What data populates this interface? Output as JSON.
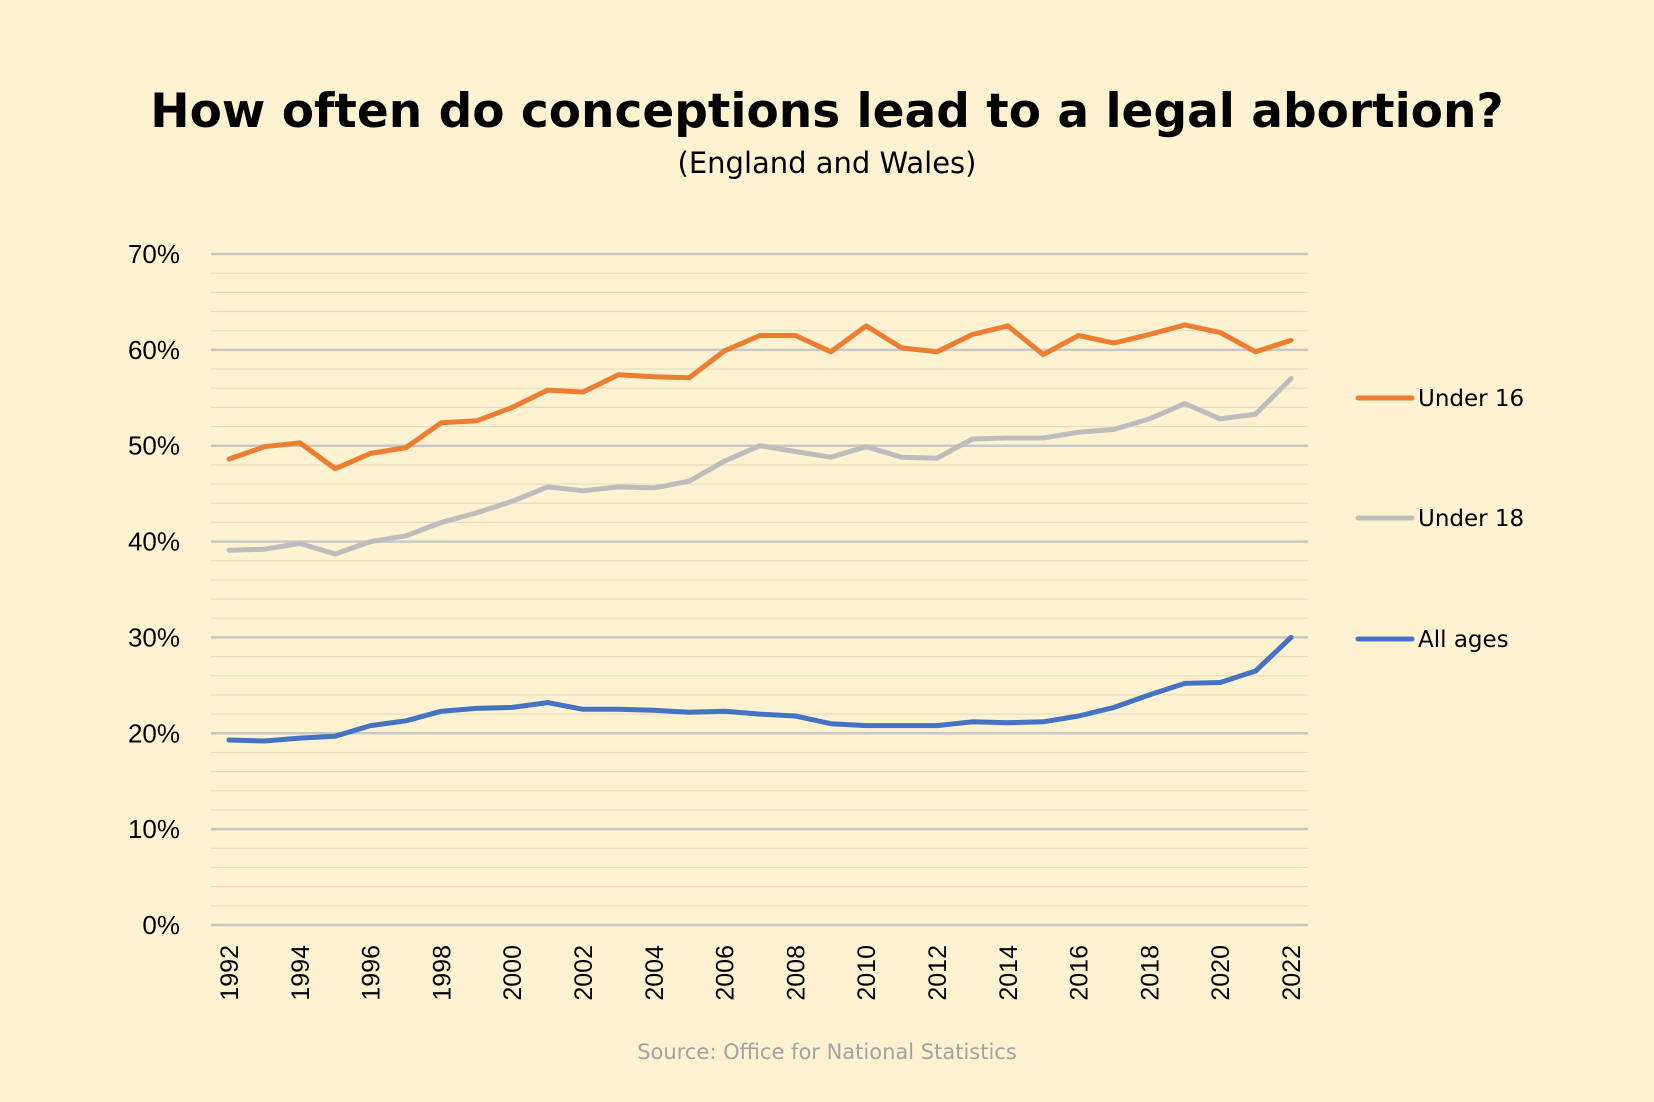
{
  "chart_data": {
    "type": "line",
    "title": "How often do conceptions lead to a legal abortion?",
    "subtitle": "(England and Wales)",
    "source": "Source: Office for National Statistics",
    "xlabel": "",
    "ylabel": "",
    "ylim": [
      0,
      70
    ],
    "yticks": [
      "0%",
      "10%",
      "20%",
      "30%",
      "40%",
      "50%",
      "60%",
      "70%"
    ],
    "xticks": [
      "1992",
      "1994",
      "1996",
      "1998",
      "2000",
      "2002",
      "2004",
      "2006",
      "2008",
      "2010",
      "2012",
      "2014",
      "2016",
      "2018",
      "2020",
      "2022"
    ],
    "x": [
      1992,
      1993,
      1994,
      1995,
      1996,
      1997,
      1998,
      1999,
      2000,
      2001,
      2002,
      2003,
      2004,
      2005,
      2006,
      2007,
      2008,
      2009,
      2010,
      2011,
      2012,
      2013,
      2014,
      2015,
      2016,
      2017,
      2018,
      2019,
      2020,
      2021,
      2022
    ],
    "grid": true,
    "legend_position": "right",
    "series": [
      {
        "name": "Under 16",
        "color": "#ed7d31",
        "values": [
          48.6,
          49.9,
          50.3,
          47.6,
          49.2,
          49.8,
          52.4,
          52.6,
          54.0,
          55.8,
          55.6,
          57.4,
          57.2,
          57.1,
          59.9,
          61.5,
          61.5,
          59.8,
          62.5,
          60.2,
          59.8,
          61.6,
          62.5,
          59.5,
          61.5,
          60.7,
          61.6,
          62.6,
          61.8,
          59.8,
          61.0
        ]
      },
      {
        "name": "Under 18",
        "color": "#bdbdbd",
        "values": [
          39.1,
          39.2,
          39.8,
          38.7,
          40.0,
          40.6,
          42.0,
          43.0,
          44.2,
          45.7,
          45.3,
          45.7,
          45.6,
          46.3,
          48.4,
          50.0,
          49.4,
          48.8,
          49.9,
          48.8,
          48.7,
          50.7,
          50.8,
          50.8,
          51.4,
          51.7,
          52.8,
          54.4,
          52.8,
          53.3,
          57.0
        ]
      },
      {
        "name": "All ages",
        "color": "#4472c4",
        "values": [
          19.3,
          19.2,
          19.5,
          19.7,
          20.8,
          21.3,
          22.3,
          22.6,
          22.7,
          23.2,
          22.5,
          22.5,
          22.4,
          22.2,
          22.3,
          22.0,
          21.8,
          21.0,
          20.8,
          20.8,
          20.8,
          21.2,
          21.1,
          21.2,
          21.8,
          22.7,
          24.0,
          25.2,
          25.3,
          26.5,
          30.0
        ]
      }
    ]
  }
}
